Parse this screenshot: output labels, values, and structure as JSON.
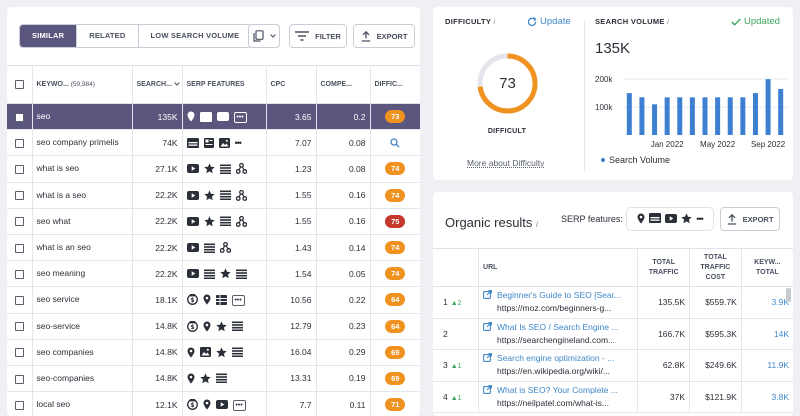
{
  "toolbar": {
    "tabs": [
      "SIMILAR",
      "RELATED",
      "LOW SEARCH VOLUME"
    ],
    "filter_label": "FILTER",
    "export_label": "EXPORT"
  },
  "keyword_table": {
    "headers": {
      "keyword": "KEYWO...",
      "count": "(59,984)",
      "search": "SEARCH...",
      "serp": "SERP FEATURES",
      "cpc": "CPC",
      "comp": "COMPE...",
      "diff": "DIFFIC..."
    },
    "rows": [
      {
        "keyword": "seo",
        "volume": "135K",
        "features": [
          "pin-icon",
          "gallery-icon",
          "video-icon",
          "more"
        ],
        "cpc": "3.65",
        "comp": "0.2",
        "diff": "73",
        "diff_color": "#f0921f",
        "selected": true
      },
      {
        "keyword": "seo company primelis",
        "volume": "74K",
        "features": [
          "gallery-icon",
          "news-icon",
          "image-icon",
          "more-dots"
        ],
        "cpc": "7.07",
        "comp": "0.08",
        "diff": "",
        "diff_icon": true
      },
      {
        "keyword": "what is seo",
        "volume": "27.1K",
        "features": [
          "video-icon",
          "star-icon",
          "list-icon",
          "sitelinks-icon"
        ],
        "cpc": "1.23",
        "comp": "0.08",
        "diff": "74",
        "diff_color": "#f0921f"
      },
      {
        "keyword": "what is a seo",
        "volume": "22.2K",
        "features": [
          "video-icon",
          "star-icon",
          "list-icon",
          "sitelinks-icon"
        ],
        "cpc": "1.55",
        "comp": "0.16",
        "diff": "74",
        "diff_color": "#f0921f"
      },
      {
        "keyword": "seo what",
        "volume": "22.2K",
        "features": [
          "video-icon",
          "star-icon",
          "list-icon",
          "sitelinks-icon"
        ],
        "cpc": "1.55",
        "comp": "0.16",
        "diff": "75",
        "diff_color": "#c7382c"
      },
      {
        "keyword": "what is an seo",
        "volume": "22.2K",
        "features": [
          "video-icon",
          "list-icon",
          "sitelinks-icon"
        ],
        "cpc": "1.43",
        "comp": "0.14",
        "diff": "74",
        "diff_color": "#f0921f"
      },
      {
        "keyword": "seo meaning",
        "volume": "22.2K",
        "features": [
          "video-icon",
          "list-icon",
          "star-icon",
          "list-icon"
        ],
        "cpc": "1.54",
        "comp": "0.05",
        "diff": "74",
        "diff_color": "#f0921f"
      },
      {
        "keyword": "seo service",
        "volume": "18.1K",
        "features": [
          "ad-icon",
          "pin-icon",
          "table-icon",
          "more"
        ],
        "cpc": "10.56",
        "comp": "0.22",
        "diff": "64",
        "diff_color": "#f0921f"
      },
      {
        "keyword": "seo-service",
        "volume": "14.8K",
        "features": [
          "ad-icon",
          "pin-icon",
          "star-icon",
          "list-icon"
        ],
        "cpc": "12.79",
        "comp": "0.23",
        "diff": "64",
        "diff_color": "#f0921f"
      },
      {
        "keyword": "seo companies",
        "volume": "14.8K",
        "features": [
          "pin-icon",
          "image-icon",
          "star-icon",
          "list-icon"
        ],
        "cpc": "16.04",
        "comp": "0.29",
        "diff": "69",
        "diff_color": "#f0921f"
      },
      {
        "keyword": "seo-companies",
        "volume": "14.8K",
        "features": [
          "pin-icon",
          "star-icon",
          "list-icon"
        ],
        "cpc": "13.31",
        "comp": "0.19",
        "diff": "69",
        "diff_color": "#f0921f"
      },
      {
        "keyword": "local seo",
        "volume": "12.1K",
        "features": [
          "ad-icon",
          "pin-icon",
          "video-icon",
          "more"
        ],
        "cpc": "7.7",
        "comp": "0.11",
        "diff": "71",
        "diff_color": "#f0921f"
      }
    ]
  },
  "difficulty": {
    "title": "DIFFICULTY",
    "info": "i",
    "update_label": "Update",
    "value": 73,
    "label": "DIFFICULT",
    "link": "More about Difficulty",
    "color": "#f0921f"
  },
  "search_volume": {
    "title": "SEARCH VOLUME",
    "info": "i",
    "status": "Updated",
    "value": "135K",
    "legend": "Search Volume"
  },
  "chart_data": {
    "type": "bar",
    "y_tick_labels": [
      "200k",
      "100k"
    ],
    "y_ticks": [
      200000,
      100000
    ],
    "ylim": [
      0,
      215000
    ],
    "x_tick_labels": [
      "Jan 2022",
      "May 2022",
      "Sep 2022"
    ],
    "x_tick_index": [
      3,
      7,
      11
    ],
    "values": [
      150000,
      135000,
      110000,
      135000,
      135000,
      135000,
      135000,
      135000,
      135000,
      135000,
      150000,
      200000,
      165000
    ],
    "series": [
      {
        "name": "Search Volume",
        "color": "#3d7fd1"
      }
    ]
  },
  "organic": {
    "title": "Organic results",
    "info": "i",
    "serp_label": "SERP features:",
    "serp_icons": [
      "pin-icon",
      "gallery-icon",
      "video-icon",
      "star-icon",
      "more-dots"
    ],
    "export_label": "EXPORT",
    "headers": {
      "url": "URL",
      "traffic": "TOTAL TRAFFIC",
      "cost": "TOTAL TRAFFIC COST",
      "kw": "KEYW... TOTAL"
    },
    "rows": [
      {
        "rank": "1",
        "change": "2",
        "title": "Beginner's Guide to SEO [Sear...",
        "url": "https://moz.com/beginners-g...",
        "traffic": "135.5K",
        "cost": "$559.7K",
        "kw": "3.9K"
      },
      {
        "rank": "2",
        "change": "",
        "title": "What Is SEO / Search Engine ...",
        "url": "https://searchengineland.com...",
        "traffic": "166.7K",
        "cost": "$595.3K",
        "kw": "14K"
      },
      {
        "rank": "3",
        "change": "1",
        "title": "Search engine optimization - ...",
        "url": "https://en.wikipedia.org/wiki/...",
        "traffic": "62.8K",
        "cost": "$249.6K",
        "kw": "11.9K"
      },
      {
        "rank": "4",
        "change": "1",
        "title": "What is SEO? Your Complete ...",
        "url": "https://neilpatel.com/what-is...",
        "traffic": "37K",
        "cost": "$121.9K",
        "kw": "3.8K"
      }
    ]
  }
}
